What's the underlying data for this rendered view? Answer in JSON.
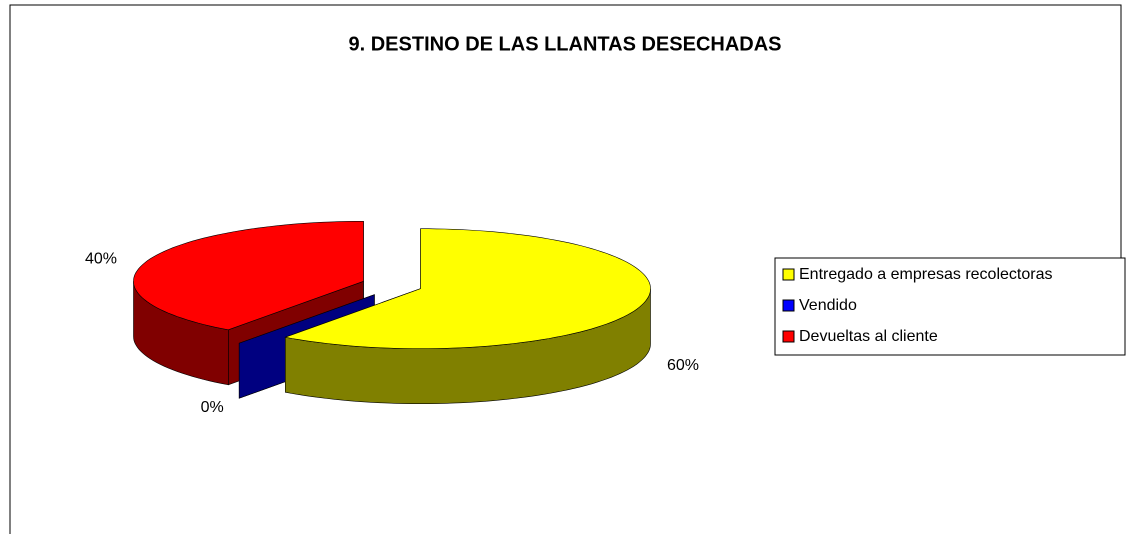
{
  "chart_data": {
    "type": "pie",
    "title": "9. DESTINO DE LAS LLANTAS DESECHADAS",
    "categories": [
      "Entregado a empresas recolectoras",
      "Vendido",
      "Devueltas al cliente"
    ],
    "values": [
      60,
      0,
      40
    ],
    "value_labels": [
      "60%",
      "0%",
      "40%"
    ],
    "colors": [
      "#ffff00",
      "#0000ff",
      "#ff0000"
    ],
    "legend": "right",
    "style": "3d-exploded"
  }
}
